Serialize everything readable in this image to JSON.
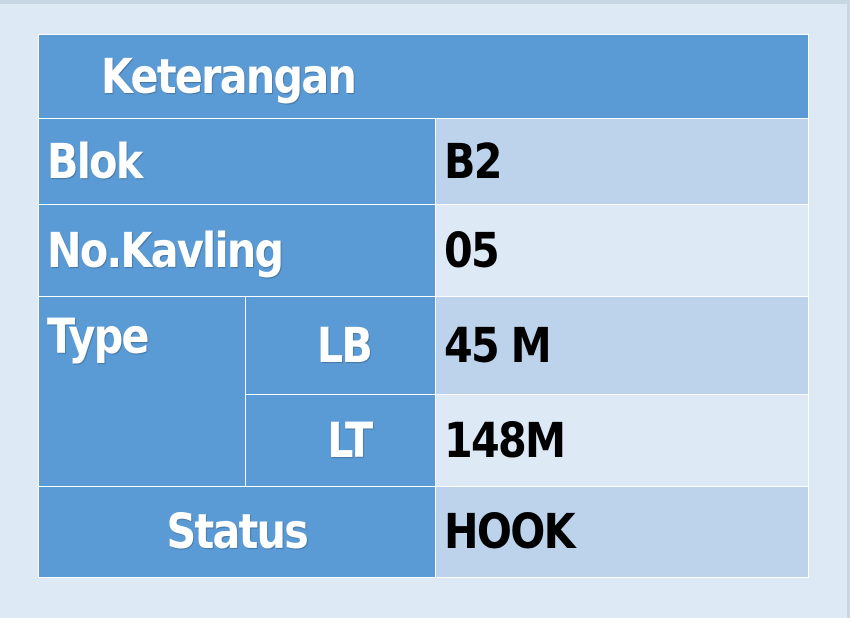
{
  "table": {
    "title": "Keterangan",
    "blok": {
      "label": "Blok",
      "value": "B2"
    },
    "kavling": {
      "label": "No.Kavling",
      "value": "05"
    },
    "type": {
      "label": "Type",
      "lb": {
        "label": "LB",
        "value": "45 M"
      },
      "lt": {
        "label": "LT",
        "value": "148M"
      }
    },
    "status": {
      "label": "Status",
      "value": "HOOK"
    }
  },
  "colors": {
    "header_blue": "#5b9bd5",
    "value_light": "#bdd3ec",
    "value_lighter": "#dde9f5",
    "background": "#dde9f5"
  }
}
